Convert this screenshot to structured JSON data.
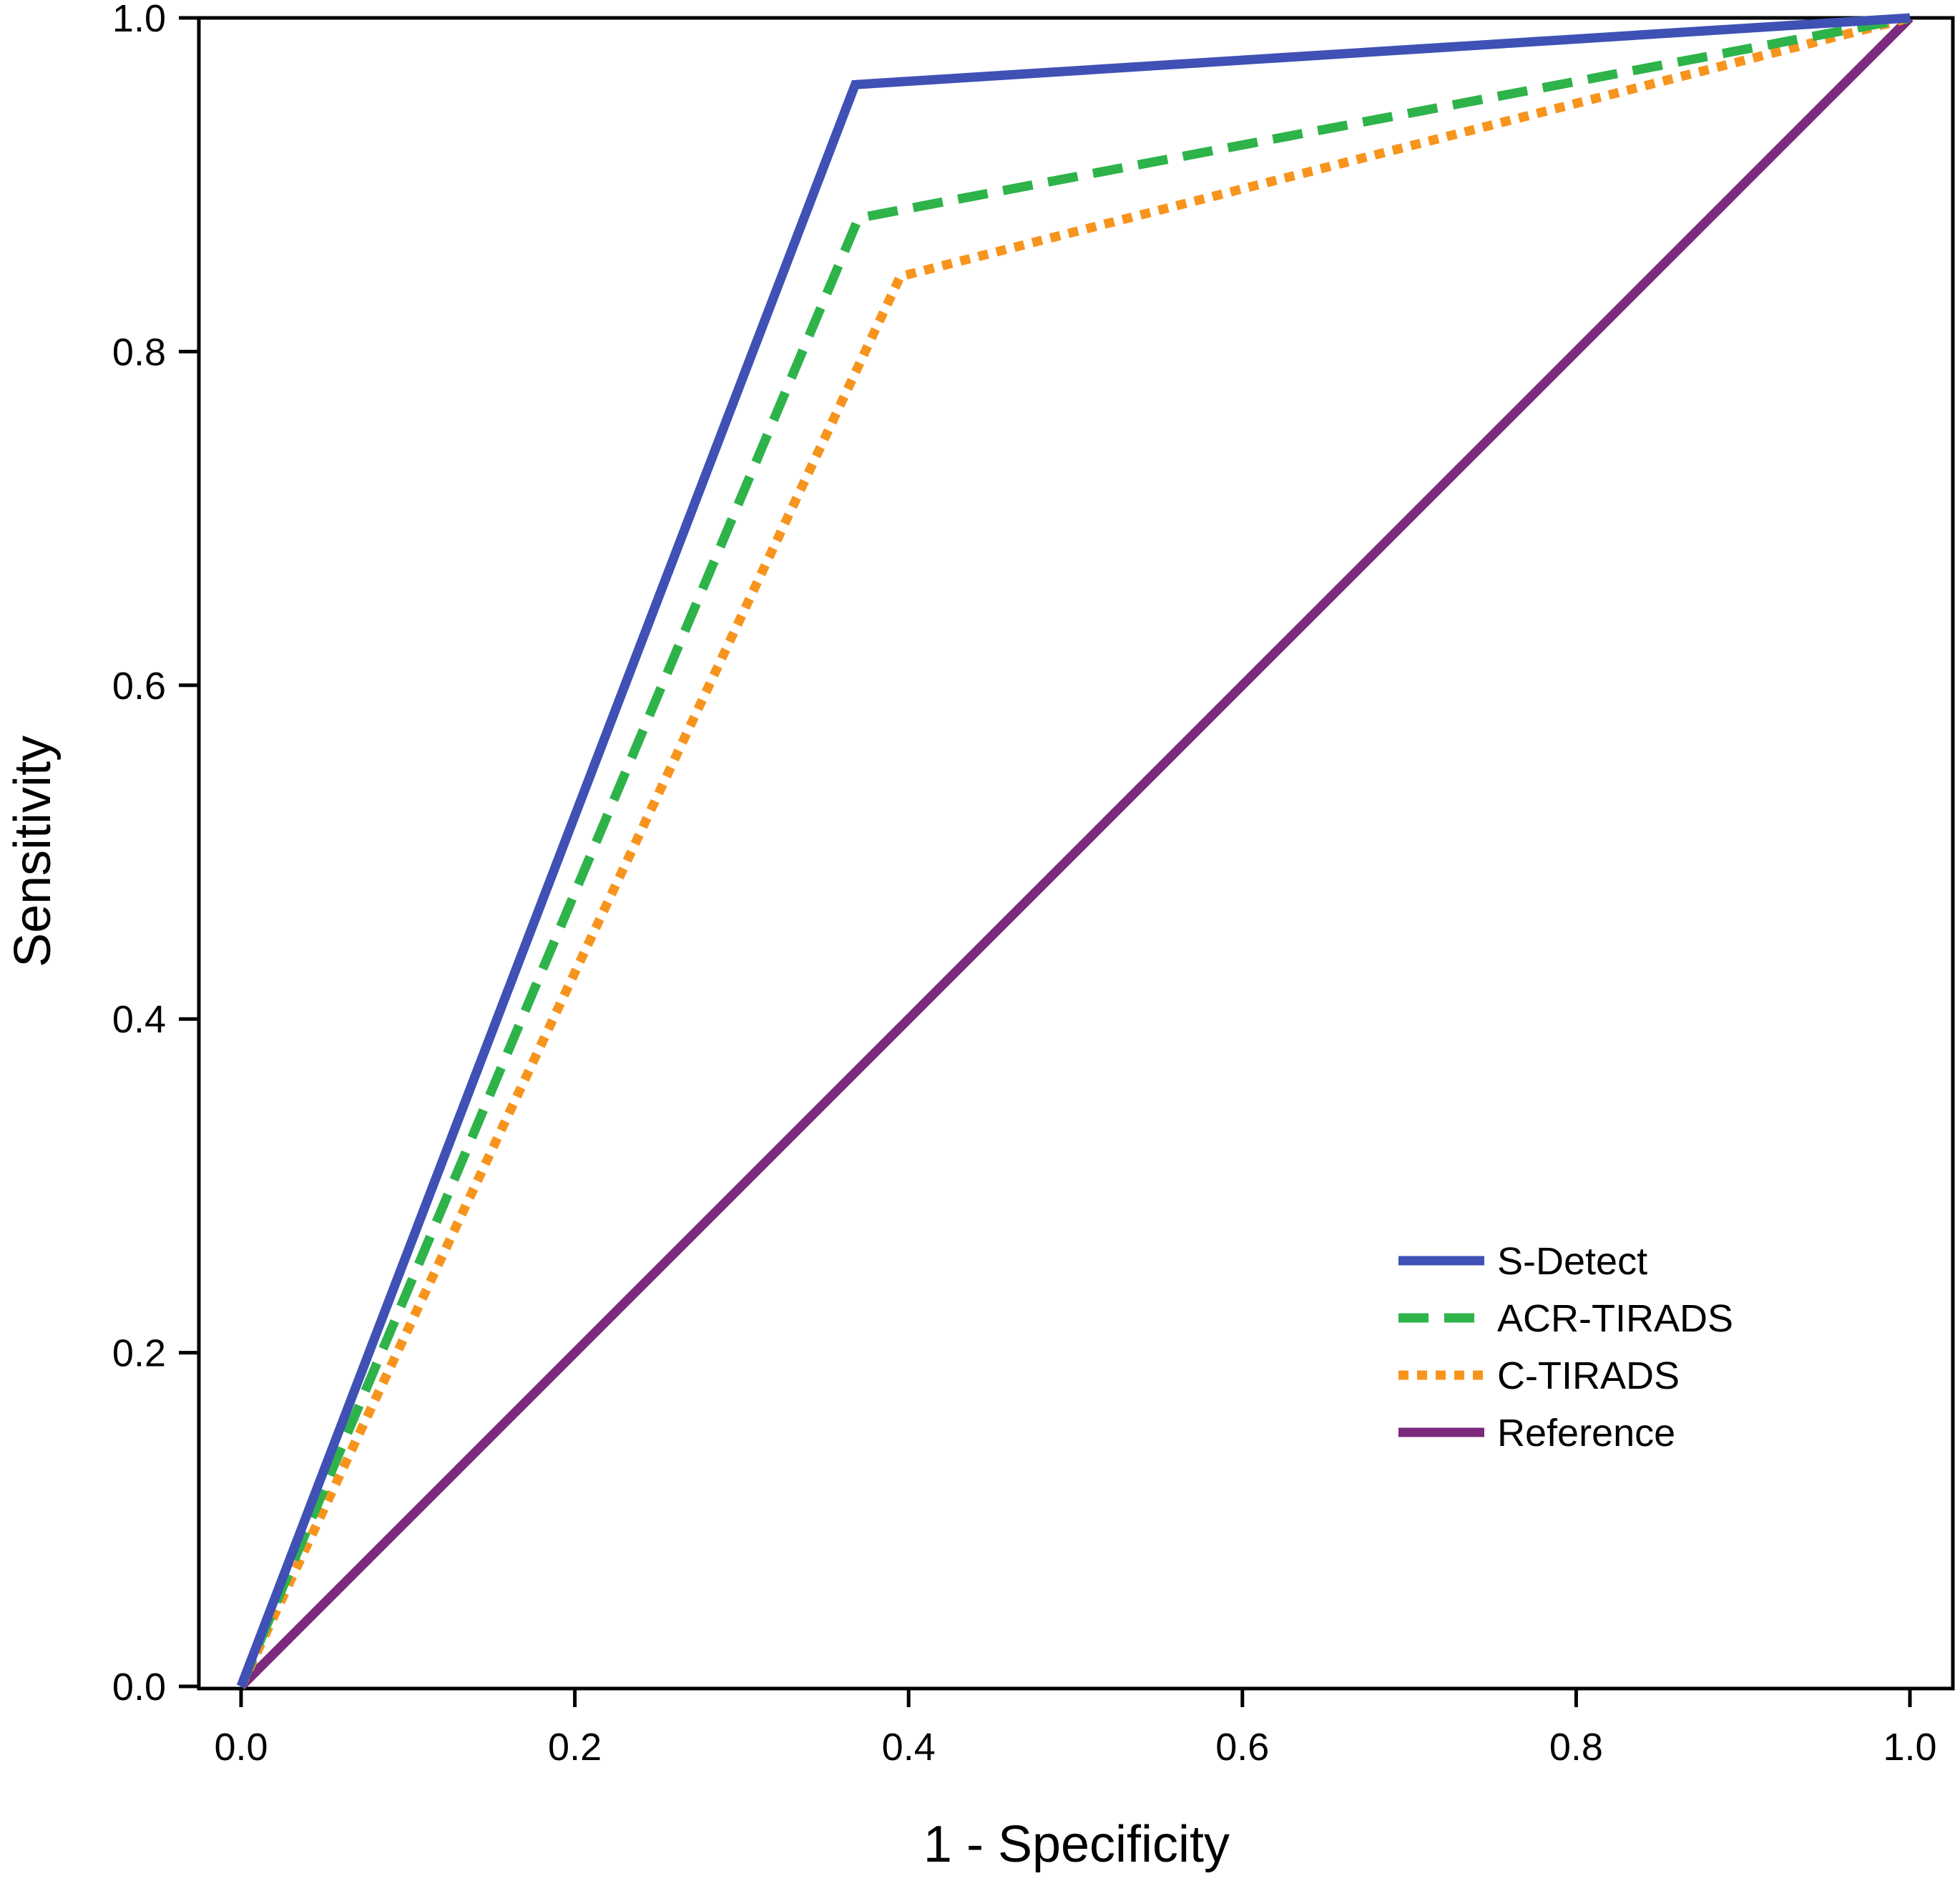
{
  "chart_data": {
    "type": "line",
    "title": "",
    "xlabel": "1 - Specificity",
    "ylabel": "Sensitivity",
    "xlim": [
      0.0,
      1.0
    ],
    "ylim": [
      0.0,
      1.0
    ],
    "xticks": [
      "0.0",
      "0.2",
      "0.4",
      "0.6",
      "0.8",
      "1.0"
    ],
    "yticks": [
      "0.0",
      "0.2",
      "0.4",
      "0.6",
      "0.8",
      "1.0"
    ],
    "grid": false,
    "legend_position": "bottom-right",
    "series": [
      {
        "name": "S-Detect",
        "color": "#3f51b5",
        "style": "solid",
        "points": [
          [
            0.0,
            0.0
          ],
          [
            0.368,
            0.96
          ],
          [
            1.0,
            1.0
          ]
        ]
      },
      {
        "name": "ACR-TIRADS",
        "color": "#2eb34a",
        "style": "dashed",
        "points": [
          [
            0.0,
            0.0
          ],
          [
            0.37,
            0.88
          ],
          [
            1.0,
            1.0
          ]
        ]
      },
      {
        "name": "C-TIRADS",
        "color": "#f7941d",
        "style": "dotted",
        "points": [
          [
            0.0,
            0.0
          ],
          [
            0.395,
            0.845
          ],
          [
            1.0,
            1.0
          ]
        ]
      },
      {
        "name": "Reference",
        "color": "#7b2a7e",
        "style": "solid",
        "points": [
          [
            0.0,
            0.0
          ],
          [
            1.0,
            1.0
          ]
        ]
      }
    ]
  }
}
